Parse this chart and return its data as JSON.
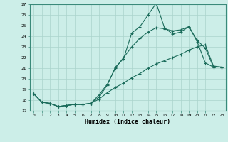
{
  "xlabel": "Humidex (Indice chaleur)",
  "background_color": "#cceee8",
  "line_color": "#1a6b5a",
  "grid_color": "#aad4cc",
  "xlim": [
    -0.5,
    23.5
  ],
  "ylim": [
    17,
    27
  ],
  "yticks": [
    17,
    18,
    19,
    20,
    21,
    22,
    23,
    24,
    25,
    26,
    27
  ],
  "xticks": [
    0,
    1,
    2,
    3,
    4,
    5,
    6,
    7,
    8,
    9,
    10,
    11,
    12,
    13,
    14,
    15,
    16,
    17,
    18,
    19,
    20,
    21,
    22,
    23
  ],
  "line1_x": [
    0,
    1,
    2,
    3,
    4,
    5,
    6,
    7,
    8,
    9,
    10,
    11,
    12,
    13,
    14,
    15,
    16,
    17,
    18,
    19,
    20,
    21,
    22,
    23
  ],
  "line1_y": [
    18.6,
    17.8,
    17.7,
    17.4,
    17.5,
    17.6,
    17.6,
    17.7,
    18.3,
    19.4,
    21.1,
    21.9,
    24.3,
    24.9,
    26.0,
    27.1,
    24.8,
    24.2,
    24.4,
    24.9,
    23.6,
    22.9,
    21.1,
    21.1
  ],
  "line2_x": [
    0,
    1,
    2,
    3,
    4,
    5,
    6,
    7,
    8,
    9,
    10,
    11,
    12,
    13,
    14,
    15,
    16,
    17,
    18,
    19,
    20,
    21,
    22,
    23
  ],
  "line2_y": [
    18.6,
    17.8,
    17.7,
    17.4,
    17.5,
    17.6,
    17.6,
    17.7,
    18.5,
    19.5,
    21.0,
    22.0,
    23.0,
    23.8,
    24.4,
    24.8,
    24.7,
    24.5,
    24.6,
    24.9,
    23.5,
    21.5,
    21.1,
    21.1
  ],
  "line3_x": [
    0,
    1,
    2,
    3,
    4,
    5,
    6,
    7,
    8,
    9,
    10,
    11,
    12,
    13,
    14,
    15,
    16,
    17,
    18,
    19,
    20,
    21,
    22,
    23
  ],
  "line3_y": [
    18.6,
    17.8,
    17.7,
    17.4,
    17.5,
    17.6,
    17.6,
    17.7,
    18.1,
    18.7,
    19.2,
    19.6,
    20.1,
    20.5,
    21.0,
    21.4,
    21.7,
    22.0,
    22.3,
    22.7,
    23.0,
    23.2,
    21.2,
    21.1
  ]
}
